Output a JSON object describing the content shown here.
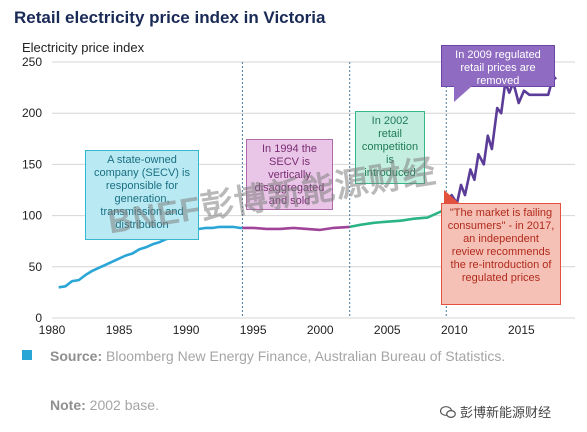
{
  "title": "Retail electricity price index in Victoria",
  "ylabel": "Electricity price index",
  "annotations": {
    "secv_lines": [
      "A state-owned",
      "company (SECV) is",
      "responsible for",
      "generation,",
      "transmission and",
      "distribution"
    ],
    "y1994_lines": [
      "In 1994 the",
      "SECV is",
      "vertically",
      "disaggregated",
      "and sold"
    ],
    "y2002_lines": [
      "In 2002",
      "retail",
      "competition",
      "is",
      "introduced"
    ],
    "y2009_lines": [
      "In 2009 regulated",
      "retail prices are",
      "removed"
    ],
    "y2017_lines": [
      "\"The market is failing",
      "consumers\" - in 2017,",
      "an independent",
      "review recommends",
      "the re-introduction of",
      "regulated prices"
    ]
  },
  "watermark": "BNEF彭博新能源财经",
  "source_label": "Source:",
  "source_text": " Bloomberg New Energy Finance, Australian Bureau of Statistics.",
  "note_label": "Note:",
  "note_text": " 2002 base.",
  "logo_text": "彭博新能源财经",
  "colors": {
    "seg1": "#2aa6d6",
    "seg2": "#a0449a",
    "seg3": "#2bb584",
    "seg4": "#5b3c98",
    "grid": "#d6d6d6",
    "divider": "#4b7aa0"
  },
  "chart_data": {
    "type": "line",
    "xlim": [
      1980,
      2019
    ],
    "ylim": [
      0,
      250
    ],
    "xticks": [
      1980,
      1985,
      1990,
      1995,
      2000,
      2005,
      2010,
      2015
    ],
    "yticks": [
      0,
      50,
      100,
      150,
      200,
      250
    ],
    "grid": true,
    "dividers": [
      1994.2,
      2002.2,
      2009.4
    ],
    "series": [
      {
        "x": [
          1980.5,
          1981,
          1981.5,
          1982,
          1982.5,
          1983,
          1983.5,
          1984,
          1984.5,
          1985,
          1985.5,
          1986,
          1986.5,
          1987,
          1987.5,
          1988,
          1988.5,
          1989,
          1989.5,
          1990,
          1990.5,
          1991,
          1991.5,
          1992,
          1992.5,
          1993,
          1993.5,
          1994,
          1994.2
        ],
        "y": [
          30,
          31,
          36,
          37,
          42,
          46,
          49,
          52,
          55,
          58,
          61,
          63,
          67,
          69,
          72,
          74,
          77,
          79,
          82,
          84,
          86,
          87,
          88,
          88,
          89,
          89,
          89,
          88,
          88
        ]
      },
      {
        "x": [
          1994.2,
          1995,
          1996,
          1997,
          1998,
          1999,
          2000,
          2001,
          2002.2
        ],
        "y": [
          88,
          88,
          87,
          87,
          88,
          87,
          86,
          88,
          89
        ]
      },
      {
        "x": [
          2002.2,
          2003,
          2004,
          2005,
          2006,
          2007,
          2008,
          2009,
          2009.4
        ],
        "y": [
          89,
          91,
          93,
          94,
          95,
          97,
          98,
          104,
          108
        ]
      },
      {
        "x": [
          2009.4,
          2009.8,
          2010.2,
          2010.5,
          2010.8,
          2011.2,
          2011.5,
          2011.8,
          2012.2,
          2012.5,
          2012.8,
          2013.2,
          2013.5,
          2013.8,
          2014.1,
          2014.4,
          2014.8,
          2015.2,
          2015.6,
          2016,
          2016.5,
          2017,
          2017.3,
          2017.6
        ],
        "y": [
          108,
          120,
          112,
          130,
          120,
          145,
          135,
          160,
          150,
          178,
          165,
          205,
          200,
          230,
          220,
          230,
          210,
          222,
          218,
          218,
          218,
          218,
          232,
          235
        ]
      }
    ]
  }
}
